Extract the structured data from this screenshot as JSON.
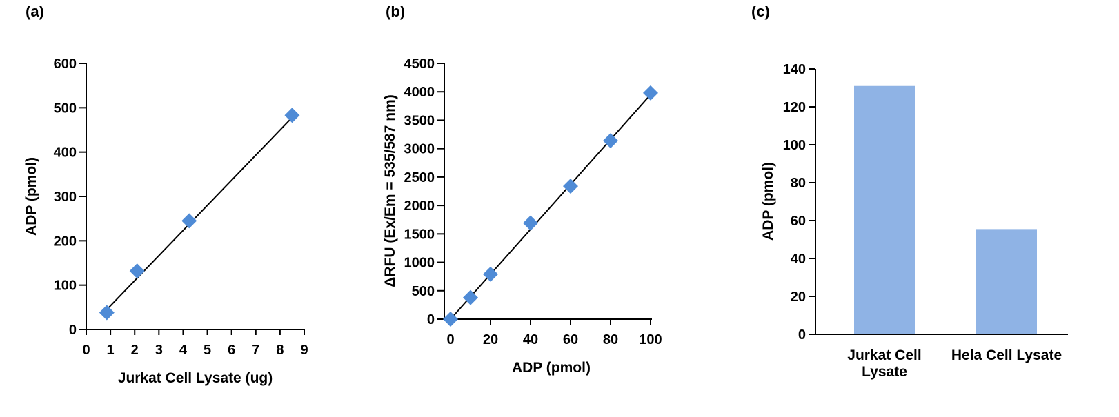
{
  "colors": {
    "marker": "#4f8bd6",
    "bar": "#8fb3e5",
    "axis": "#000000"
  },
  "chart_data": [
    {
      "panel_label": "(a)",
      "type": "scatter",
      "xlabel": "Jurkat Cell Lysate (ug)",
      "ylabel": "ADP (pmol)",
      "xlim": [
        0,
        9
      ],
      "ylim": [
        0,
        600
      ],
      "xticks": [
        0,
        1,
        2,
        3,
        4,
        5,
        6,
        7,
        8,
        9
      ],
      "yticks": [
        0,
        100,
        200,
        300,
        400,
        500,
        600
      ],
      "points": [
        {
          "x": 0.85,
          "y": 38
        },
        {
          "x": 2.1,
          "y": 132
        },
        {
          "x": 4.25,
          "y": 245
        },
        {
          "x": 8.5,
          "y": 483
        }
      ],
      "fit_line": {
        "x": [
          0.85,
          8.5
        ],
        "y": [
          45,
          478
        ]
      }
    },
    {
      "panel_label": "(b)",
      "type": "scatter",
      "xlabel": "ADP (pmol)",
      "ylabel": "ΔRFU (Ex/Em = 535/587 nm)",
      "xlim": [
        0,
        100
      ],
      "ylim": [
        0,
        4500
      ],
      "xticks": [
        0,
        20,
        40,
        60,
        80,
        100
      ],
      "yticks": [
        0,
        500,
        1000,
        1500,
        2000,
        2500,
        3000,
        3500,
        4000,
        4500
      ],
      "points": [
        {
          "x": 0,
          "y": 0
        },
        {
          "x": 10,
          "y": 380
        },
        {
          "x": 20,
          "y": 790
        },
        {
          "x": 40,
          "y": 1690
        },
        {
          "x": 60,
          "y": 2340
        },
        {
          "x": 80,
          "y": 3140
        },
        {
          "x": 100,
          "y": 3980
        }
      ],
      "fit_line": {
        "x": [
          0,
          100
        ],
        "y": [
          0,
          3950
        ]
      }
    },
    {
      "panel_label": "(c)",
      "type": "bar",
      "xlabel": "",
      "ylabel": "ADP (pmol)",
      "ylim": [
        0,
        140
      ],
      "yticks": [
        0,
        20,
        40,
        60,
        80,
        100,
        120,
        140
      ],
      "categories": [
        "Jurkat Cell Lysate",
        "Hela Cell Lysate"
      ],
      "category_lines": [
        [
          "Jurkat Cell",
          "Lysate"
        ],
        [
          "Hela Cell Lysate"
        ]
      ],
      "values": [
        131,
        55.5
      ]
    }
  ]
}
